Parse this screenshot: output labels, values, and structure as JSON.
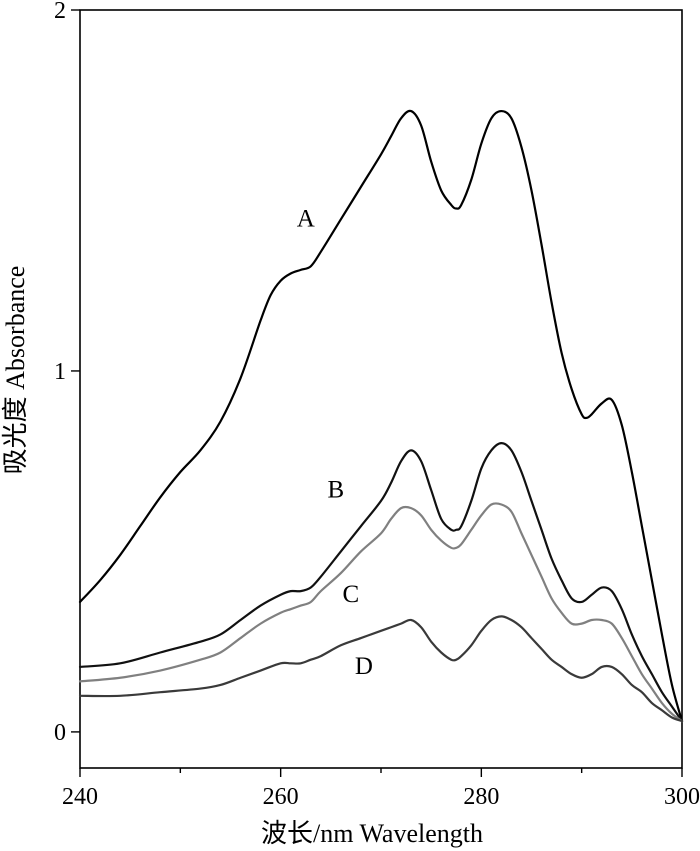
{
  "chart_data": {
    "type": "line",
    "title": "",
    "xlabel": "波长/nm  Wavelength",
    "ylabel": "吸光度  Absorbance",
    "xlim": [
      240,
      300
    ],
    "ylim": [
      -0.1,
      2
    ],
    "xticks": [
      240,
      260,
      280,
      300
    ],
    "xticks_minor": [
      250,
      270,
      290
    ],
    "yticks": [
      0,
      1,
      2
    ],
    "grid": false,
    "legend": "none",
    "series": [
      {
        "name": "A",
        "color": "#000000",
        "label_at": [
          262.5,
          1.4
        ],
        "x": [
          240,
          242,
          244,
          246,
          248,
          250,
          252,
          254,
          256,
          258,
          259,
          260,
          261,
          262,
          263,
          264,
          266,
          268,
          270,
          271,
          272,
          273,
          274,
          275,
          276,
          277,
          277.5,
          278,
          279,
          280,
          281,
          282,
          283,
          284,
          285,
          286,
          287,
          288,
          289,
          290,
          290.5,
          291,
          292,
          293,
          294,
          295,
          296,
          297,
          298,
          299,
          300
        ],
        "y": [
          0.36,
          0.42,
          0.49,
          0.57,
          0.65,
          0.72,
          0.78,
          0.86,
          0.98,
          1.14,
          1.21,
          1.25,
          1.27,
          1.28,
          1.29,
          1.33,
          1.42,
          1.51,
          1.6,
          1.65,
          1.7,
          1.72,
          1.68,
          1.58,
          1.5,
          1.46,
          1.45,
          1.46,
          1.53,
          1.63,
          1.7,
          1.72,
          1.7,
          1.62,
          1.5,
          1.35,
          1.19,
          1.05,
          0.95,
          0.88,
          0.87,
          0.88,
          0.91,
          0.92,
          0.85,
          0.72,
          0.57,
          0.42,
          0.27,
          0.13,
          0.03
        ]
      },
      {
        "name": "B",
        "color": "#111111",
        "label_at": [
          265.5,
          0.65
        ],
        "x": [
          240,
          244,
          248,
          252,
          254,
          256,
          258,
          260,
          261,
          262,
          263,
          264,
          266,
          268,
          270,
          271,
          272,
          273,
          274,
          275,
          276,
          277,
          277.5,
          278,
          279,
          280,
          281,
          282,
          283,
          284,
          285,
          286,
          287,
          288,
          289,
          290,
          291,
          292,
          293,
          294,
          295,
          296,
          297,
          298,
          299,
          300
        ],
        "y": [
          0.18,
          0.19,
          0.22,
          0.25,
          0.27,
          0.31,
          0.35,
          0.38,
          0.39,
          0.39,
          0.4,
          0.43,
          0.5,
          0.57,
          0.64,
          0.69,
          0.75,
          0.78,
          0.75,
          0.67,
          0.59,
          0.56,
          0.56,
          0.57,
          0.64,
          0.73,
          0.78,
          0.8,
          0.78,
          0.72,
          0.64,
          0.56,
          0.48,
          0.42,
          0.37,
          0.36,
          0.38,
          0.4,
          0.39,
          0.34,
          0.27,
          0.21,
          0.16,
          0.11,
          0.07,
          0.03
        ]
      },
      {
        "name": "C",
        "color": "#808080",
        "label_at": [
          267,
          0.36
        ],
        "x": [
          240,
          244,
          248,
          252,
          254,
          256,
          258,
          260,
          261,
          262,
          263,
          264,
          266,
          268,
          270,
          271,
          272,
          273,
          274,
          275,
          276,
          277,
          277.5,
          278,
          279,
          280,
          281,
          282,
          283,
          284,
          285,
          286,
          287,
          288,
          289,
          290,
          291,
          292,
          293,
          294,
          295,
          296,
          297,
          298,
          299,
          300
        ],
        "y": [
          0.14,
          0.15,
          0.17,
          0.2,
          0.22,
          0.26,
          0.3,
          0.33,
          0.34,
          0.35,
          0.36,
          0.39,
          0.44,
          0.5,
          0.55,
          0.59,
          0.62,
          0.62,
          0.6,
          0.56,
          0.53,
          0.51,
          0.51,
          0.52,
          0.56,
          0.6,
          0.63,
          0.63,
          0.61,
          0.55,
          0.49,
          0.43,
          0.37,
          0.33,
          0.3,
          0.3,
          0.31,
          0.31,
          0.3,
          0.26,
          0.21,
          0.16,
          0.12,
          0.08,
          0.05,
          0.03
        ]
      },
      {
        "name": "D",
        "color": "#3a3a3a",
        "label_at": [
          268.3,
          0.16
        ],
        "x": [
          240,
          244,
          248,
          252,
          254,
          256,
          258,
          260,
          261,
          262,
          263,
          264,
          266,
          268,
          270,
          271,
          272,
          273,
          274,
          275,
          276,
          277,
          277.5,
          278,
          279,
          280,
          281,
          282,
          283,
          284,
          285,
          286,
          287,
          288,
          289,
          290,
          291,
          292,
          293,
          294,
          295,
          296,
          297,
          298,
          299,
          300
        ],
        "y": [
          0.1,
          0.1,
          0.11,
          0.12,
          0.13,
          0.15,
          0.17,
          0.19,
          0.19,
          0.19,
          0.2,
          0.21,
          0.24,
          0.26,
          0.28,
          0.29,
          0.3,
          0.31,
          0.29,
          0.25,
          0.22,
          0.2,
          0.2,
          0.21,
          0.24,
          0.28,
          0.31,
          0.32,
          0.31,
          0.29,
          0.26,
          0.23,
          0.2,
          0.18,
          0.16,
          0.15,
          0.16,
          0.18,
          0.18,
          0.16,
          0.13,
          0.11,
          0.08,
          0.06,
          0.04,
          0.03
        ]
      }
    ]
  }
}
